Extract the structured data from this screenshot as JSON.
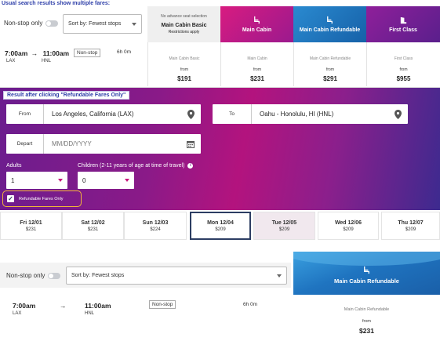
{
  "captions": {
    "top": "Usual search results show multiple fares:",
    "middle": "Result after clicking \"Refundable Fares Only\""
  },
  "filters": {
    "nonstop_label": "Non-stop only",
    "sort_label": "Sort by: Fewest stops"
  },
  "flight": {
    "depart_time": "7:00am",
    "arrow": "→",
    "arrive_time": "11:00am",
    "badge": "Non-stop",
    "duration": "6h 0m",
    "origin": "LAX",
    "destination": "HNL"
  },
  "fare_headers": {
    "basic_note": "No advance seat selection",
    "basic_title": "Main Cabin Basic",
    "basic_sub": "Restrictions apply",
    "main": "Main Cabin",
    "refundable": "Main Cabin Refundable",
    "first": "First Class"
  },
  "fares": [
    {
      "name": "Main Cabin Basic",
      "from": "from",
      "price": "$191"
    },
    {
      "name": "Main Cabin",
      "from": "from",
      "price": "$231"
    },
    {
      "name": "Main Cabin Refundable",
      "from": "from",
      "price": "$291"
    },
    {
      "name": "First Class",
      "from": "from",
      "price": "$955"
    }
  ],
  "search": {
    "from_label": "From",
    "from_value": "Los Angeles, California (LAX)",
    "to_label": "To",
    "to_value": "Oahu - Honolulu, HI (HNL)",
    "depart_label": "Depart",
    "depart_placeholder": "MM/DD/YYYY",
    "adults_label": "Adults",
    "adults_value": "1",
    "children_label": "Children (2-11 years of age at time of travel)",
    "children_value": "0",
    "refundable_label": "Refundable Fares Only",
    "refundable_checked": true
  },
  "dates": [
    {
      "day": "Fri 12/01",
      "price": "$231"
    },
    {
      "day": "Sat 12/02",
      "price": "$231"
    },
    {
      "day": "Sun 12/03",
      "price": "$224"
    },
    {
      "day": "Mon 12/04",
      "price": "$209"
    },
    {
      "day": "Tue 12/05",
      "price": "$209"
    },
    {
      "day": "Wed 12/06",
      "price": "$209"
    },
    {
      "day": "Thu 12/07",
      "price": "$209"
    }
  ],
  "result2": {
    "header": "Main Cabin Refundable",
    "fare_name": "Main Cabin Refundable",
    "from": "from",
    "price": "$231"
  },
  "colors": {
    "brand_purple": "#6a1a8a",
    "magenta": "#c8157a",
    "blue": "#1e7bc4",
    "navy": "#2d3e63"
  }
}
